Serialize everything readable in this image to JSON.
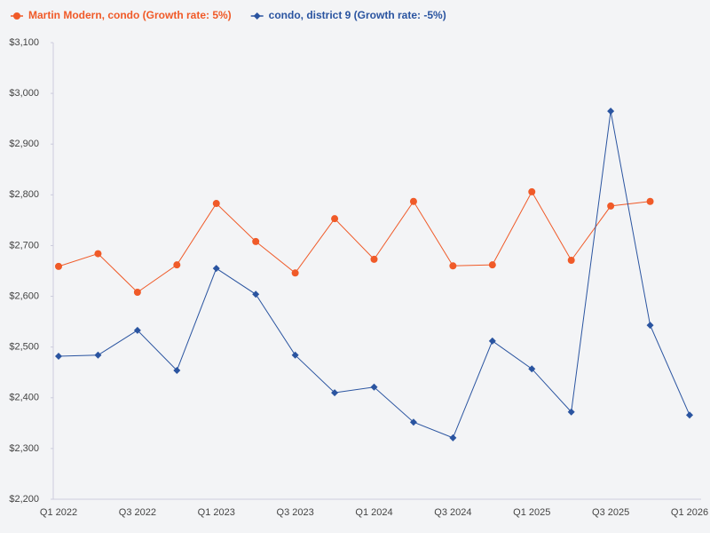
{
  "chart_data": {
    "type": "line",
    "categories": [
      "Q1 2022",
      null,
      "Q3 2022",
      null,
      "Q1 2023",
      null,
      "Q3 2023",
      null,
      "Q1 2024",
      null,
      "Q3 2024",
      null,
      "Q1 2025",
      null,
      "Q3 2025",
      null,
      "Q1 2026"
    ],
    "series": [
      {
        "name": "Martin Modern, condo (Growth rate: 5%)",
        "color": "#f05a28",
        "marker": "circle",
        "values": [
          2659,
          2684,
          2608,
          2662,
          2783,
          2708,
          2646,
          2753,
          2673,
          2787,
          2660,
          2662,
          2806,
          2671,
          2778,
          2787,
          null
        ]
      },
      {
        "name": "condo, district 9 (Growth rate: -5%)",
        "color": "#2a54a0",
        "marker": "diamond",
        "values": [
          2482,
          2484,
          2533,
          2454,
          2655,
          2604,
          2484,
          2410,
          2421,
          2352,
          2321,
          2512,
          2457,
          2372,
          2965,
          2543,
          2366
        ]
      }
    ],
    "ylim": [
      2200,
      3100
    ],
    "yticks": [
      {
        "value": 2200,
        "label": "$2,200"
      },
      {
        "value": 2300,
        "label": "$2,300"
      },
      {
        "value": 2400,
        "label": "$2,400"
      },
      {
        "value": 2500,
        "label": "$2,500"
      },
      {
        "value": 2600,
        "label": "$2,600"
      },
      {
        "value": 2700,
        "label": "$2,700"
      },
      {
        "value": 2800,
        "label": "$2,800"
      },
      {
        "value": 2900,
        "label": "$2,900"
      },
      {
        "value": 3000,
        "label": "$3,000"
      },
      {
        "value": 3100,
        "label": "$3,100"
      }
    ],
    "legend": "top-left"
  }
}
